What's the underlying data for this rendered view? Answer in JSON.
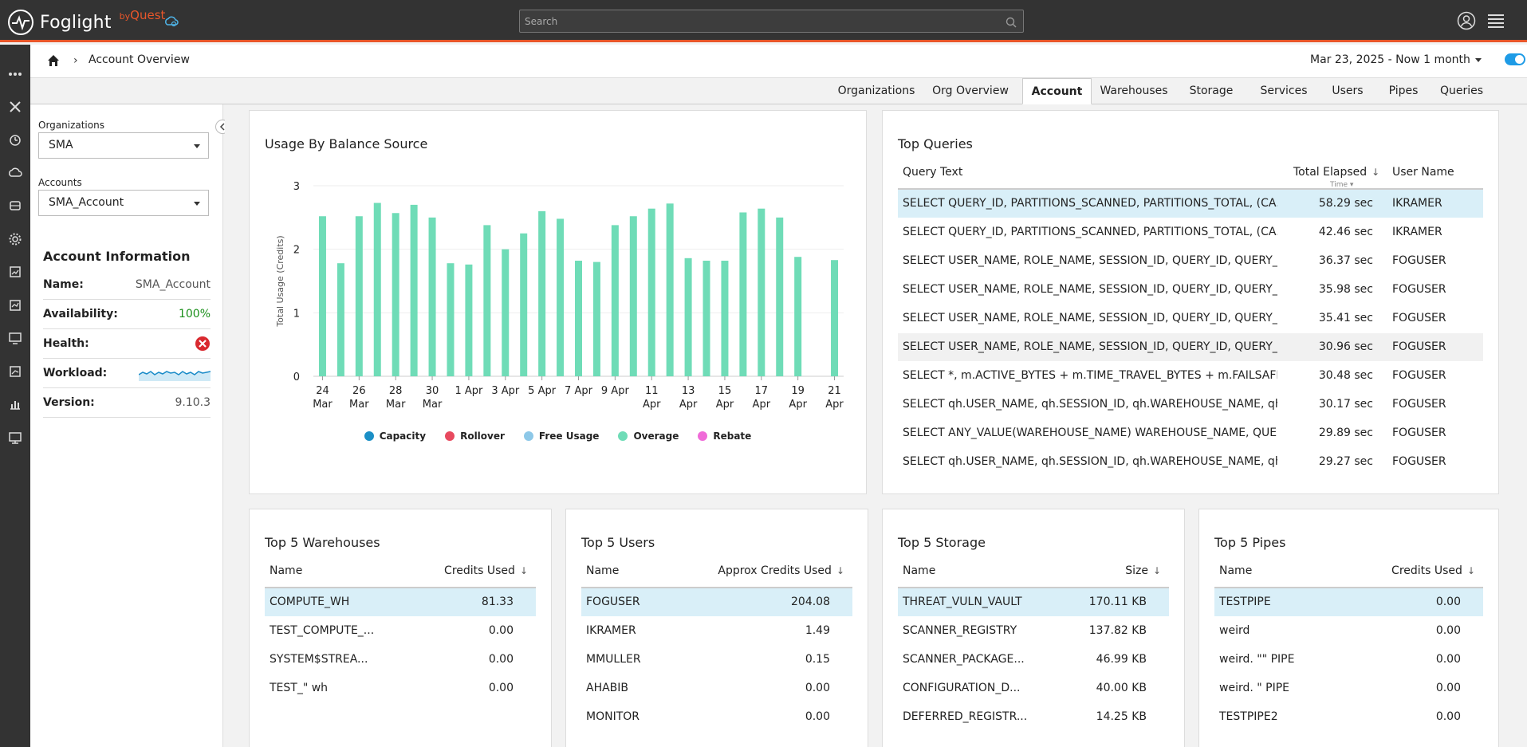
{
  "app": {
    "name": "Foglight",
    "by": "by",
    "brand": "Quest"
  },
  "search": {
    "placeholder": "Search"
  },
  "breadcrumb": {
    "title": "Account Overview"
  },
  "date_range": {
    "label": "Mar 23, 2025 - Now 1 month"
  },
  "tabs": [
    {
      "label": "Organizations",
      "active": false
    },
    {
      "label": "Org Overview",
      "active": false
    },
    {
      "label": "Account",
      "active": true
    },
    {
      "label": "Warehouses",
      "active": false
    },
    {
      "label": "Storage",
      "active": false
    },
    {
      "label": "Services",
      "active": false
    },
    {
      "label": "Users",
      "active": false
    },
    {
      "label": "Pipes",
      "active": false
    },
    {
      "label": "Queries",
      "active": false
    }
  ],
  "filters": {
    "organizations_label": "Organizations",
    "organizations_value": "SMA",
    "accounts_label": "Accounts",
    "accounts_value": "SMA_Account"
  },
  "account_info": {
    "title": "Account Information",
    "name_label": "Name:",
    "name_value": "SMA_Account",
    "availability_label": "Availability:",
    "availability_value": "100%",
    "health_label": "Health:",
    "workload_label": "Workload:",
    "version_label": "Version:",
    "version_value": "9.10.3"
  },
  "usage_card": {
    "title": "Usage By Balance Source"
  },
  "chart_data": {
    "type": "bar",
    "title": "Usage By Balance Source",
    "ylabel": "Total Usage (Credits)",
    "ylim": [
      0,
      3
    ],
    "yticks": [
      "0",
      "1",
      "2",
      "3"
    ],
    "xticks": [
      {
        "day": "24",
        "month": "Mar"
      },
      {
        "day": "26",
        "month": "Mar"
      },
      {
        "day": "28",
        "month": "Mar"
      },
      {
        "day": "30",
        "month": "Mar"
      },
      {
        "day": "1 Apr",
        "month": ""
      },
      {
        "day": "3 Apr",
        "month": ""
      },
      {
        "day": "5 Apr",
        "month": ""
      },
      {
        "day": "7 Apr",
        "month": ""
      },
      {
        "day": "9 Apr",
        "month": ""
      },
      {
        "day": "11",
        "month": "Apr"
      },
      {
        "day": "13",
        "month": "Apr"
      },
      {
        "day": "15",
        "month": "Apr"
      },
      {
        "day": "17",
        "month": "Apr"
      },
      {
        "day": "19",
        "month": "Apr"
      },
      {
        "day": "21",
        "month": "Apr"
      }
    ],
    "categories": [
      "Mar 24",
      "Mar 25",
      "Mar 26",
      "Mar 27",
      "Mar 28",
      "Mar 29",
      "Mar 30",
      "Mar 31",
      "Apr 1",
      "Apr 2",
      "Apr 3",
      "Apr 4",
      "Apr 5",
      "Apr 6",
      "Apr 7",
      "Apr 8",
      "Apr 9",
      "Apr 10",
      "Apr 11",
      "Apr 12",
      "Apr 13",
      "Apr 14",
      "Apr 15",
      "Apr 16",
      "Apr 17",
      "Apr 18",
      "Apr 19",
      "Apr 20",
      "Apr 21"
    ],
    "series": [
      {
        "name": "Capacity",
        "color": "#1b8fc6",
        "values": [
          0,
          0,
          0,
          0,
          0,
          0,
          0,
          0,
          0,
          0,
          0,
          0,
          0,
          0,
          0,
          0,
          0,
          0,
          0,
          0,
          0,
          0,
          0,
          0,
          0,
          0,
          0,
          0,
          0
        ]
      },
      {
        "name": "Rollover",
        "color": "#e84a5f",
        "values": [
          0,
          0,
          0,
          0,
          0,
          0,
          0,
          0,
          0,
          0,
          0,
          0,
          0,
          0,
          0,
          0,
          0,
          0,
          0,
          0,
          0,
          0,
          0,
          0,
          0,
          0,
          0,
          0,
          0
        ]
      },
      {
        "name": "Free Usage",
        "color": "#8dc8e8",
        "values": [
          0,
          0,
          0,
          0,
          0,
          0,
          0,
          0,
          0,
          0,
          0,
          0,
          0,
          0,
          0,
          0,
          0,
          0,
          0,
          0,
          0,
          0,
          0,
          0,
          0,
          0,
          0,
          0,
          0
        ]
      },
      {
        "name": "Overage",
        "color": "#6fdcb7",
        "values": [
          2.52,
          1.78,
          2.52,
          2.73,
          2.57,
          2.7,
          2.5,
          1.78,
          1.76,
          2.38,
          2.0,
          2.25,
          2.6,
          2.48,
          1.82,
          1.8,
          2.38,
          2.52,
          2.64,
          2.72,
          1.86,
          1.82,
          1.82,
          2.58,
          2.64,
          2.5,
          1.88,
          null,
          1.83
        ]
      },
      {
        "name": "Rebate",
        "color": "#f06bd8",
        "values": [
          0,
          0,
          0,
          0,
          0,
          0,
          0,
          0,
          0,
          0,
          0,
          0,
          0,
          0,
          0,
          0,
          0,
          0,
          0,
          0,
          0,
          0,
          0,
          0,
          0,
          0,
          0,
          0,
          0
        ]
      }
    ],
    "legend_position": "bottom"
  },
  "top_queries": {
    "title": "Top Queries",
    "col_query": "Query Text",
    "col_elapsed": "Total Elapsed",
    "col_elapsed_sub": "Time",
    "col_user": "User Name",
    "rows": [
      {
        "query": "SELECT QUERY_ID, PARTITIONS_SCANNED, PARTITIONS_TOTAL, (CA...",
        "elapsed": "58.29 sec",
        "user": "IKRAMER"
      },
      {
        "query": "SELECT QUERY_ID, PARTITIONS_SCANNED, PARTITIONS_TOTAL, (CA...",
        "elapsed": "42.46 sec",
        "user": "IKRAMER"
      },
      {
        "query": "SELECT USER_NAME, ROLE_NAME, SESSION_ID, QUERY_ID, QUERY_...",
        "elapsed": "36.37 sec",
        "user": "FOGUSER"
      },
      {
        "query": "SELECT USER_NAME, ROLE_NAME, SESSION_ID, QUERY_ID, QUERY_...",
        "elapsed": "35.98 sec",
        "user": "FOGUSER"
      },
      {
        "query": "SELECT USER_NAME, ROLE_NAME, SESSION_ID, QUERY_ID, QUERY_...",
        "elapsed": "35.41 sec",
        "user": "FOGUSER"
      },
      {
        "query": "SELECT USER_NAME, ROLE_NAME, SESSION_ID, QUERY_ID, QUERY_...",
        "elapsed": "30.96 sec",
        "user": "FOGUSER"
      },
      {
        "query": "SELECT *, m.ACTIVE_BYTES + m.TIME_TRAVEL_BYTES + m.FAILSAFE_...",
        "elapsed": "30.48 sec",
        "user": "FOGUSER"
      },
      {
        "query": "SELECT qh.USER_NAME, qh.SESSION_ID, qh.WAREHOUSE_NAME, qh....",
        "elapsed": "30.17 sec",
        "user": "FOGUSER"
      },
      {
        "query": "SELECT ANY_VALUE(WAREHOUSE_NAME) WAREHOUSE_NAME, QUE...",
        "elapsed": "29.89 sec",
        "user": "FOGUSER"
      },
      {
        "query": "SELECT qh.USER_NAME, qh.SESSION_ID, qh.WAREHOUSE_NAME, qh....",
        "elapsed": "29.27 sec",
        "user": "FOGUSER"
      }
    ]
  },
  "top_warehouses": {
    "title": "Top 5 Warehouses",
    "col_name": "Name",
    "col_value": "Credits Used",
    "rows": [
      {
        "name": "COMPUTE_WH",
        "value": "81.33"
      },
      {
        "name": "TEST_COMPUTE_...",
        "value": "0.00"
      },
      {
        "name": "SYSTEM$STREA...",
        "value": "0.00"
      },
      {
        "name": "TEST_\" wh",
        "value": "0.00"
      }
    ]
  },
  "top_users": {
    "title": "Top 5 Users",
    "col_name": "Name",
    "col_value": "Approx Credits Used",
    "rows": [
      {
        "name": "FOGUSER",
        "value": "204.08"
      },
      {
        "name": "IKRAMER",
        "value": "1.49"
      },
      {
        "name": "MMULLER",
        "value": "0.15"
      },
      {
        "name": "AHABIB",
        "value": "0.00"
      },
      {
        "name": "MONITOR",
        "value": "0.00"
      }
    ]
  },
  "top_storage": {
    "title": "Top 5 Storage",
    "col_name": "Name",
    "col_value": "Size",
    "rows": [
      {
        "name": "THREAT_VULN_VAULT",
        "value": "170.11 KB"
      },
      {
        "name": "SCANNER_REGISTRY",
        "value": "137.82 KB"
      },
      {
        "name": "SCANNER_PACKAGE...",
        "value": "46.99 KB"
      },
      {
        "name": "CONFIGURATION_D...",
        "value": "40.00 KB"
      },
      {
        "name": "DEFERRED_REGISTR...",
        "value": "14.25 KB"
      }
    ]
  },
  "top_pipes": {
    "title": "Top 5 Pipes",
    "col_name": "Name",
    "col_value": "Credits Used",
    "rows": [
      {
        "name": "TESTPIPE",
        "value": "0.00"
      },
      {
        "name": "weird",
        "value": "0.00"
      },
      {
        "name": "weird. \"\" PIPE",
        "value": "0.00"
      },
      {
        "name": "weird. \" PIPE",
        "value": "0.00"
      },
      {
        "name": "TESTPIPE2",
        "value": "0.00"
      }
    ]
  },
  "colors": {
    "accent": "#e8562a",
    "header_bg": "#333333",
    "selected_row": "#d9eff8",
    "bar": "#6fdcb7"
  }
}
